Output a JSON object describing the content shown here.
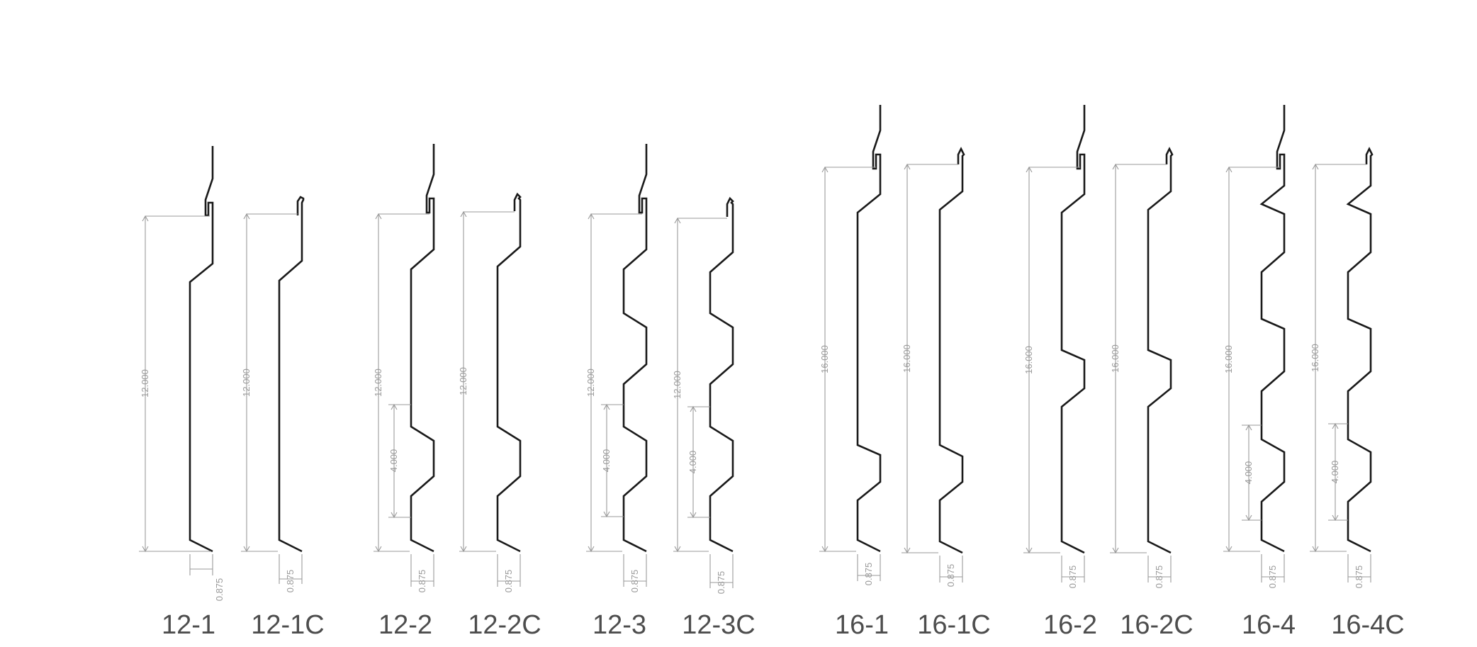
{
  "profiles": [
    {
      "id": "12-1",
      "name": "12-1",
      "height": "12.000",
      "leg": "0.875",
      "ribs": 0,
      "hook": "clip",
      "pitch": ""
    },
    {
      "id": "12-1C",
      "name": "12-1C",
      "height": "12.000",
      "leg": "0.875",
      "ribs": 0,
      "hook": "lip",
      "pitch": ""
    },
    {
      "id": "12-2",
      "name": "12-2",
      "height": "12.000",
      "leg": "0.875",
      "ribs": 1,
      "hook": "clip",
      "pitch": "4.000"
    },
    {
      "id": "12-2C",
      "name": "12-2C",
      "height": "12.000",
      "leg": "0.875",
      "ribs": 1,
      "hook": "lip",
      "pitch": ""
    },
    {
      "id": "12-3",
      "name": "12-3",
      "height": "12.000",
      "leg": "0.875",
      "ribs": 2,
      "hook": "clip",
      "pitch": "4.000"
    },
    {
      "id": "12-3C",
      "name": "12-3C",
      "height": "12.000",
      "leg": "0.875",
      "ribs": 2,
      "hook": "lip",
      "pitch": "4.000"
    },
    {
      "id": "16-1",
      "name": "16-1",
      "height": "16.000",
      "leg": "0.875",
      "ribs": 1,
      "hook": "clip",
      "pitch": ""
    },
    {
      "id": "16-1C",
      "name": "16-1C",
      "height": "16.000",
      "leg": "0.875",
      "ribs": 1,
      "hook": "lip",
      "pitch": ""
    },
    {
      "id": "16-2",
      "name": "16-2",
      "height": "16.000",
      "leg": "0.875",
      "ribs": 1,
      "hook": "clip",
      "pitch": ""
    },
    {
      "id": "16-2C",
      "name": "16-2C",
      "height": "16.000",
      "leg": "0.875",
      "ribs": 1,
      "hook": "lip",
      "pitch": ""
    },
    {
      "id": "16-4",
      "name": "16-4",
      "height": "16.000",
      "leg": "0.875",
      "ribs": 3,
      "hook": "clip",
      "pitch": "4.000"
    },
    {
      "id": "16-4C",
      "name": "16-4C",
      "height": "16.000",
      "leg": "0.875",
      "ribs": 3,
      "hook": "lip",
      "pitch": "4.000"
    }
  ]
}
